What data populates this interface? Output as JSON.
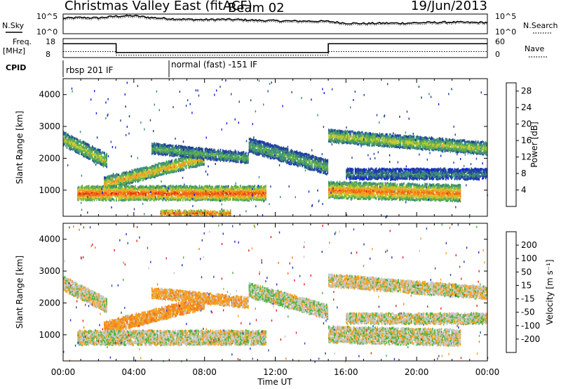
{
  "header": {
    "station": "Christmas Valley East (fitACF)",
    "beam": "Beam 02",
    "date": "19/Jun/2013"
  },
  "top_panels": {
    "nsky_label": "N.Sky",
    "nsky_ticks": [
      "10^5",
      "10^0"
    ],
    "nsearch_label": "N.Search",
    "nsearch_ticks": [
      "10^5",
      "10^0"
    ],
    "freq_label": "Freq.",
    "freq_unit": "[MHz]",
    "freq_ticks": [
      "18",
      "8"
    ],
    "nave_label": "Nave",
    "nave_ticks": [
      "60",
      "0"
    ],
    "cpid_label": "CPID",
    "cpid_segments": [
      {
        "label": "rbsp 201 IF",
        "start_hour": 0
      },
      {
        "label": "normal (fast) -151 IF",
        "start_hour": 6
      }
    ]
  },
  "time_axis": {
    "label": "Time UT",
    "ticks": [
      "00:00",
      "04:00",
      "08:00",
      "12:00",
      "16:00",
      "20:00",
      "00:00"
    ]
  },
  "colors": {
    "blue": "#0a1ee6",
    "navy": "#22419a",
    "teal": "#3c8c78",
    "green": "#5fb04a",
    "yellow": "#c8c832",
    "orange": "#f59b1e",
    "red_orange": "#f06414",
    "red": "#e61414",
    "gray": "#c8c8c8",
    "vel_blue": "#1e32c8",
    "vel_navy": "#2850a0",
    "vel_green": "#46b43c",
    "vel_orange": "#f5a01e",
    "vel_darkorange": "#f0781e",
    "vel_red": "#e61e1e"
  },
  "chart_data": [
    {
      "type": "line",
      "name": "N.Sky / N.Search",
      "x_hours": [
        0,
        1,
        2,
        3,
        4,
        5,
        6,
        7,
        8,
        9,
        10,
        11,
        12,
        13,
        14,
        15,
        16,
        17,
        18,
        19,
        20,
        21,
        22,
        23,
        24
      ],
      "n_sky_log10": [
        4.2,
        4.4,
        4.3,
        4.8,
        4.9,
        4.4,
        4.1,
        3.9,
        3.8,
        3.9,
        3.8,
        3.6,
        3.5,
        3.4,
        3.4,
        3.3,
        2.8,
        2.7,
        2.8,
        2.8,
        2.9,
        3.0,
        3.1,
        3.0,
        3.0
      ],
      "ylim_log10": [
        0,
        5
      ]
    },
    {
      "type": "line",
      "name": "Freq / Nave",
      "segments": [
        {
          "start_hour": 0,
          "end_hour": 3,
          "freq_mhz": 15.5
        },
        {
          "start_hour": 3,
          "end_hour": 15,
          "freq_mhz": 10.5
        },
        {
          "start_hour": 15,
          "end_hour": 24,
          "freq_mhz": 15.5
        }
      ],
      "freq_ylim": [
        8,
        18
      ],
      "nave_ylim": [
        0,
        60
      ]
    },
    {
      "type": "heatmap",
      "name": "Power",
      "xlabel": "Time UT",
      "ylabel": "Slant Range [km]",
      "xlim_hours": [
        0,
        24
      ],
      "ylim_km": [
        180,
        4500
      ],
      "yticks": [
        "1000",
        "2000",
        "3000",
        "4000"
      ],
      "colorbar": {
        "label": "Power [dB]",
        "ticks": [
          "4",
          "8",
          "12",
          "16",
          "20",
          "24",
          "28"
        ],
        "range": [
          0,
          30
        ],
        "levels": [
          "#0a1ee6",
          "#22419a",
          "#3c8c78",
          "#5fb04a",
          "#c8c832",
          "#f59b1e",
          "#f06414",
          "#e61414"
        ]
      },
      "echo_bands": [
        {
          "t0": 0.0,
          "t1": 2.5,
          "r0": 2600,
          "r1": 1900,
          "width": 220,
          "peak_db": 18
        },
        {
          "t0": 2.3,
          "t1": 8.0,
          "r0": 1200,
          "r1": 2000,
          "width": 180,
          "peak_db": 22
        },
        {
          "t0": 5.0,
          "t1": 10.5,
          "r0": 2300,
          "r1": 2000,
          "width": 160,
          "peak_db": 14
        },
        {
          "t0": 0.8,
          "t1": 11.5,
          "r0": 900,
          "r1": 900,
          "width": 200,
          "peak_db": 28
        },
        {
          "t0": 5.5,
          "t1": 9.5,
          "r0": 280,
          "r1": 280,
          "width": 60,
          "peak_db": 28
        },
        {
          "t0": 10.5,
          "t1": 15.0,
          "r0": 2400,
          "r1": 1700,
          "width": 200,
          "peak_db": 14
        },
        {
          "t0": 15.0,
          "t1": 22.5,
          "r0": 1000,
          "r1": 900,
          "width": 250,
          "peak_db": 26
        },
        {
          "t0": 15.0,
          "t1": 24.0,
          "r0": 2700,
          "r1": 2300,
          "width": 180,
          "peak_db": 18
        },
        {
          "t0": 16.0,
          "t1": 24.0,
          "r0": 1500,
          "r1": 1500,
          "width": 150,
          "peak_db": 10
        }
      ]
    },
    {
      "type": "heatmap",
      "name": "Velocity",
      "xlabel": "Time UT",
      "ylabel": "Slant Range [km]",
      "xlim_hours": [
        0,
        24
      ],
      "ylim_km": [
        180,
        4500
      ],
      "yticks": [
        "1000",
        "2000",
        "3000",
        "4000"
      ],
      "colorbar": {
        "label": "Velocity [m s⁻¹]",
        "ticks": [
          "200",
          "100",
          "50",
          "15",
          "-15",
          "-50",
          "-100",
          "-200"
        ],
        "range": [
          -250,
          250
        ],
        "levels": [
          "#1e32c8",
          "#2850a0",
          "#46b43c",
          "#a0d28c",
          "#c8c8c8",
          "#f5a01e",
          "#f0781e",
          "#e61e1e"
        ]
      },
      "echo_bands": [
        {
          "t0": 0.0,
          "t1": 2.5,
          "r0": 2600,
          "r1": 1900,
          "width": 220,
          "vel": 0
        },
        {
          "t0": 2.3,
          "t1": 8.0,
          "r0": 1200,
          "r1": 2000,
          "width": 180,
          "vel": -40
        },
        {
          "t0": 5.0,
          "t1": 10.5,
          "r0": 2300,
          "r1": 2000,
          "width": 160,
          "vel": -30
        },
        {
          "t0": 0.8,
          "t1": 11.5,
          "r0": 900,
          "r1": 900,
          "width": 200,
          "vel": 0
        },
        {
          "t0": 10.5,
          "t1": 15.0,
          "r0": 2400,
          "r1": 1700,
          "width": 200,
          "vel": 5
        },
        {
          "t0": 15.0,
          "t1": 22.5,
          "r0": 1000,
          "r1": 900,
          "width": 250,
          "vel": 0
        },
        {
          "t0": 15.0,
          "t1": 24.0,
          "r0": 2700,
          "r1": 2300,
          "width": 180,
          "vel": -5
        },
        {
          "t0": 16.0,
          "t1": 24.0,
          "r0": 1500,
          "r1": 1500,
          "width": 150,
          "vel": 0
        }
      ]
    }
  ]
}
